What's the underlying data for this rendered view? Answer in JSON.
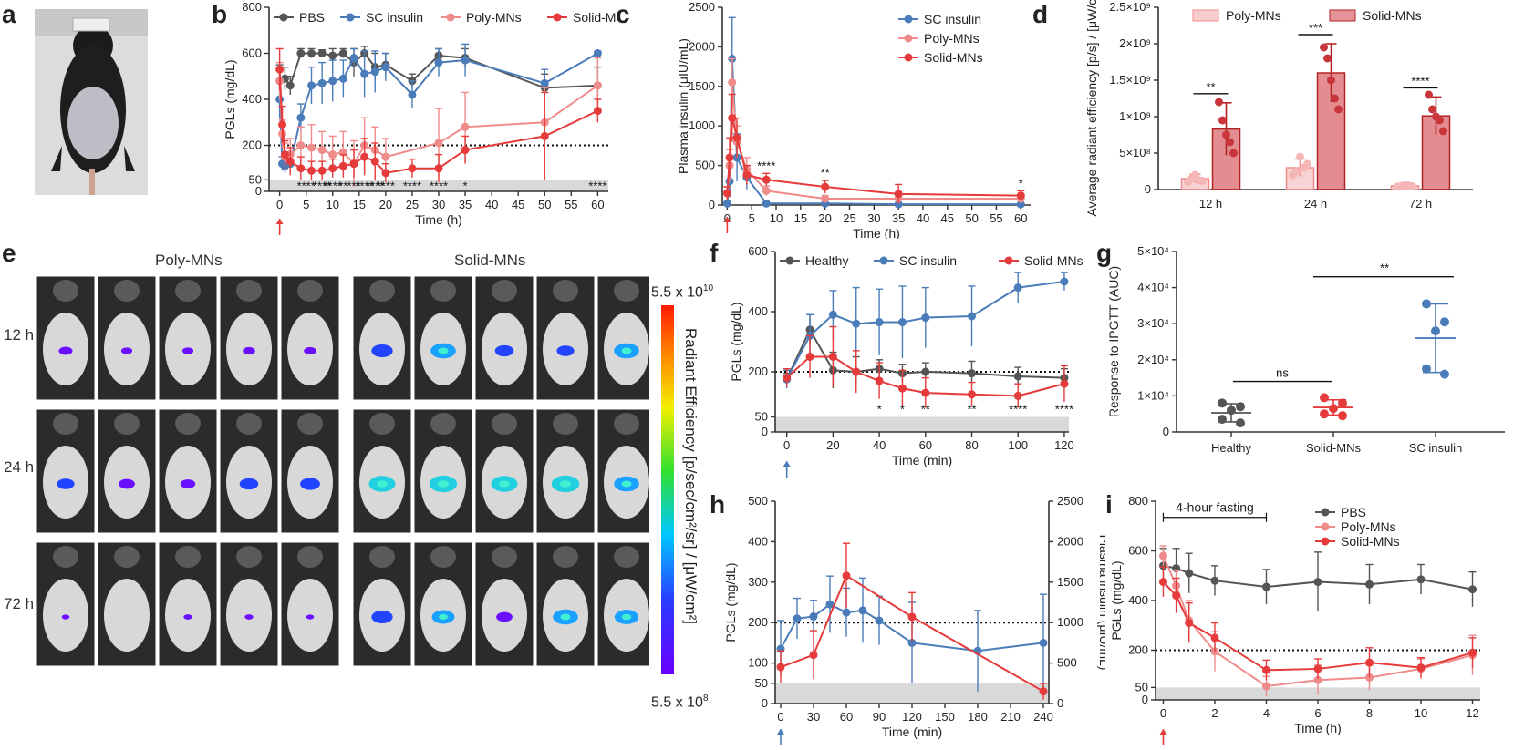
{
  "panel_letters": [
    "a",
    "b",
    "c",
    "d",
    "e",
    "f",
    "g",
    "h",
    "i"
  ],
  "colors": {
    "black": "#555555",
    "blue": "#4a7cba",
    "pink": "#f08b8b",
    "red": "#e63b3b",
    "grey_band": "#d9d9d9",
    "arrow_red": "#e63b3b",
    "arrow_blue": "#4a7cba"
  },
  "panel_e": {
    "group_labels": [
      "Poly-MNs",
      "Solid-MNs"
    ],
    "row_labels": [
      "12 h",
      "24 h",
      "72 h"
    ],
    "scale_max": "5.5 x 10",
    "scale_max_exp": "10",
    "scale_min": "5.5 x 10",
    "scale_min_exp": "8",
    "scale_title": "Radiant Efficiency [p/sec/cm²/sr] / [μW/cm²]",
    "signal_strength": [
      [
        0.25,
        0.15,
        0.15,
        0.2,
        0.2,
        0.55,
        0.7,
        0.45,
        0.4,
        0.7
      ],
      [
        0.4,
        0.35,
        0.3,
        0.45,
        0.5,
        0.75,
        0.8,
        0.75,
        0.8,
        0.7
      ],
      [
        0.02,
        0.0,
        0.05,
        0.05,
        0.02,
        0.55,
        0.6,
        0.35,
        0.7,
        0.65
      ]
    ]
  },
  "chart_data": [
    {
      "id": "b",
      "type": "line",
      "xlabel": "Time (h)",
      "ylabel": "PGLs (mg/dL)",
      "xlim": [
        -2,
        62
      ],
      "ylim": [
        0,
        800
      ],
      "xticks": [
        0,
        5,
        10,
        15,
        20,
        25,
        30,
        35,
        40,
        45,
        50,
        55,
        60
      ],
      "yticks": [
        0,
        50,
        200,
        400,
        600,
        800
      ],
      "reference_line": 200,
      "shaded_band": [
        0,
        50
      ],
      "series": [
        {
          "name": "PBS",
          "color": "#555555",
          "x": [
            0,
            1,
            2,
            4,
            6,
            8,
            10,
            12,
            14,
            16,
            18,
            20,
            25,
            30,
            35,
            50,
            60
          ],
          "y": [
            480,
            490,
            460,
            600,
            600,
            600,
            590,
            600,
            560,
            600,
            540,
            550,
            480,
            590,
            580,
            450,
            460
          ],
          "err": [
            70,
            50,
            40,
            20,
            20,
            15,
            30,
            20,
            60,
            30,
            60,
            50,
            30,
            30,
            40,
            60,
            80
          ]
        },
        {
          "name": "SC insulin",
          "color": "#4a7cba",
          "x": [
            0,
            0.5,
            1,
            2,
            4,
            6,
            8,
            10,
            12,
            14,
            16,
            18,
            20,
            25,
            30,
            35,
            50,
            60
          ],
          "y": [
            400,
            120,
            110,
            120,
            320,
            460,
            470,
            480,
            490,
            580,
            510,
            520,
            540,
            420,
            560,
            570,
            470,
            600
          ],
          "err": [
            80,
            30,
            30,
            40,
            60,
            80,
            90,
            90,
            80,
            40,
            100,
            90,
            60,
            60,
            60,
            70,
            60,
            10
          ]
        },
        {
          "name": "Poly-MNs",
          "color": "#f08b8b",
          "x": [
            0,
            0.5,
            1,
            2,
            4,
            6,
            8,
            10,
            12,
            14,
            16,
            18,
            20,
            30,
            35,
            50,
            60
          ],
          "y": [
            480,
            250,
            150,
            160,
            200,
            190,
            180,
            160,
            170,
            120,
            200,
            180,
            150,
            210,
            280,
            300,
            460
          ],
          "err": [
            80,
            60,
            60,
            70,
            80,
            100,
            80,
            80,
            90,
            100,
            120,
            100,
            80,
            150,
            150,
            150,
            120
          ]
        },
        {
          "name": "Solid-MNs",
          "color": "#e63b3b",
          "x": [
            0,
            0.5,
            1,
            2,
            4,
            6,
            8,
            10,
            12,
            14,
            16,
            18,
            20,
            25,
            30,
            35,
            50,
            60
          ],
          "y": [
            530,
            290,
            160,
            130,
            100,
            90,
            90,
            100,
            110,
            120,
            150,
            130,
            80,
            100,
            100,
            180,
            240,
            350
          ],
          "err": [
            90,
            80,
            60,
            60,
            50,
            40,
            40,
            40,
            50,
            60,
            80,
            80,
            40,
            40,
            60,
            60,
            190,
            50
          ]
        }
      ],
      "annotations": [
        "****",
        "****",
        "****",
        "**",
        "***",
        "****",
        "****",
        "****",
        "****",
        "****",
        "*",
        "****"
      ]
    },
    {
      "id": "c",
      "type": "line",
      "xlabel": "Time (h)",
      "ylabel": "Plasma insulin (μIU/mL)",
      "xlim": [
        -1,
        62
      ],
      "ylim": [
        0,
        2500
      ],
      "xticks": [
        0,
        5,
        10,
        15,
        20,
        25,
        30,
        35,
        40,
        45,
        50,
        55,
        60
      ],
      "yticks": [
        0,
        500,
        1000,
        1500,
        2000,
        2500
      ],
      "series": [
        {
          "name": "SC insulin",
          "color": "#4a7cba",
          "x": [
            0,
            0.5,
            1,
            2,
            4,
            8,
            20,
            35,
            60
          ],
          "y": [
            20,
            300,
            1850,
            600,
            350,
            20,
            20,
            10,
            10
          ],
          "err": [
            10,
            200,
            520,
            300,
            150,
            10,
            10,
            5,
            5
          ]
        },
        {
          "name": "Poly-MNs",
          "color": "#f08b8b",
          "x": [
            0,
            0.5,
            1,
            2,
            4,
            8,
            20,
            35,
            60
          ],
          "y": [
            150,
            500,
            1550,
            800,
            450,
            180,
            80,
            80,
            80
          ],
          "err": [
            80,
            200,
            300,
            200,
            150,
            60,
            40,
            40,
            30
          ]
        },
        {
          "name": "Solid-MNs",
          "color": "#e63b3b",
          "x": [
            0,
            0.5,
            1,
            2,
            4,
            8,
            20,
            35,
            60
          ],
          "y": [
            150,
            600,
            1100,
            850,
            380,
            320,
            230,
            140,
            120
          ],
          "err": [
            80,
            250,
            300,
            250,
            120,
            80,
            80,
            120,
            60
          ]
        }
      ],
      "annotations": [
        {
          "x": 8,
          "text": "****"
        },
        {
          "x": 20,
          "text": "**"
        },
        {
          "x": 60,
          "text": "*"
        }
      ]
    },
    {
      "id": "d",
      "type": "bar",
      "ylabel": "Average radiant efficiency [p/s] / [μW/cm²]",
      "ylim": [
        0,
        2500000000
      ],
      "yticks": [
        "0",
        "5×10⁸",
        "1×10⁹",
        "1.5×10⁹",
        "2×10⁹",
        "2.5×10⁹"
      ],
      "categories": [
        "12 h",
        "24 h",
        "72 h"
      ],
      "series": [
        {
          "name": "Poly-MNs",
          "color": "#f4b6b6",
          "values": [
            150000000,
            300000000,
            50000000
          ],
          "err": [
            60000000,
            120000000,
            20000000
          ],
          "points": [
            [
              100000000,
              150000000,
              200000000,
              130000000,
              120000000
            ],
            [
              200000000,
              250000000,
              450000000,
              300000000,
              350000000
            ],
            [
              40000000,
              50000000,
              60000000,
              55000000,
              45000000
            ]
          ]
        },
        {
          "name": "Solid-MNs",
          "color": "#d9676c",
          "values": [
            830000000,
            1600000000,
            1010000000
          ],
          "err": [
            360000000,
            400000000,
            260000000
          ],
          "points": [
            [
              1200000000,
              950000000,
              750000000,
              650000000,
              500000000
            ],
            [
              1950000000,
              1800000000,
              1500000000,
              1250000000,
              1100000000
            ],
            [
              1300000000,
              1100000000,
              1000000000,
              950000000,
              800000000
            ]
          ]
        }
      ],
      "annotations": [
        "**",
        "***",
        "****"
      ]
    },
    {
      "id": "f",
      "type": "line",
      "xlabel": "Time (min)",
      "ylabel": "PGLs (mg/dL)",
      "xlim": [
        -5,
        122
      ],
      "ylim": [
        0,
        600
      ],
      "xticks": [
        0,
        20,
        40,
        60,
        80,
        100,
        120
      ],
      "yticks": [
        0,
        50,
        200,
        400,
        600
      ],
      "reference_line": 200,
      "shaded_band": [
        0,
        50
      ],
      "series": [
        {
          "name": "Healthy",
          "color": "#555555",
          "x": [
            0,
            10,
            20,
            30,
            40,
            50,
            60,
            80,
            100,
            120
          ],
          "y": [
            175,
            340,
            205,
            200,
            210,
            195,
            200,
            195,
            185,
            180
          ],
          "err": [
            20,
            50,
            60,
            50,
            30,
            30,
            30,
            40,
            30,
            30
          ]
        },
        {
          "name": "SC insulin",
          "color": "#4a7cba",
          "x": [
            0,
            10,
            20,
            30,
            40,
            50,
            60,
            80,
            100,
            120
          ],
          "y": [
            175,
            320,
            390,
            360,
            365,
            365,
            380,
            385,
            480,
            500
          ],
          "err": [
            30,
            70,
            80,
            120,
            110,
            120,
            100,
            100,
            50,
            30
          ]
        },
        {
          "name": "Solid-MNs",
          "color": "#e63b3b",
          "x": [
            0,
            10,
            20,
            30,
            40,
            50,
            60,
            80,
            100,
            120
          ],
          "y": [
            180,
            250,
            250,
            200,
            170,
            145,
            130,
            125,
            120,
            160
          ],
          "err": [
            30,
            70,
            100,
            70,
            60,
            60,
            50,
            40,
            40,
            60
          ]
        }
      ],
      "annotations": [
        {
          "x": 40,
          "text": "*"
        },
        {
          "x": 50,
          "text": "*"
        },
        {
          "x": 60,
          "text": "**"
        },
        {
          "x": 80,
          "text": "**"
        },
        {
          "x": 100,
          "text": "****"
        },
        {
          "x": 120,
          "text": "****"
        }
      ]
    },
    {
      "id": "g",
      "type": "scatter",
      "ylabel": "Response to IPGTT (AUC)",
      "ylim": [
        0,
        50000
      ],
      "yticks": [
        "0",
        "1×10⁴",
        "2×10⁴",
        "3×10⁴",
        "4×10⁴",
        "5×10⁴"
      ],
      "categories": [
        "Healthy",
        "Solid-MNs",
        "SC insulin"
      ],
      "series": [
        {
          "name": "Healthy",
          "color": "#555555",
          "points": [
            8000,
            7000,
            6000,
            3500,
            2500
          ],
          "mean": 5300,
          "err": 2500
        },
        {
          "name": "Solid-MNs",
          "color": "#e63b3b",
          "points": [
            9500,
            8000,
            6500,
            5000,
            4500
          ],
          "mean": 6800,
          "err": 2100
        },
        {
          "name": "SC insulin",
          "color": "#4a7cba",
          "points": [
            35500,
            30500,
            28000,
            17500,
            16000
          ],
          "mean": 26000,
          "err": 9500
        }
      ],
      "annotations": [
        {
          "text": "ns",
          "between": [
            "Healthy",
            "Solid-MNs"
          ]
        },
        {
          "text": "**",
          "between": [
            "Solid-MNs",
            "SC insulin"
          ]
        }
      ]
    },
    {
      "id": "h",
      "type": "line",
      "xlabel": "Time (min)",
      "ylabel": "PGLs (mg/dL)",
      "ylabel_right": "Plasma insulin (μIU/mL)",
      "xlim": [
        -5,
        245
      ],
      "ylim": [
        0,
        500
      ],
      "ylim_right": [
        0,
        2500
      ],
      "xticks": [
        0,
        30,
        60,
        90,
        120,
        150,
        180,
        210,
        240
      ],
      "yticks": [
        0,
        50,
        100,
        200,
        300,
        400,
        500
      ],
      "yticks_right": [
        0,
        500,
        1000,
        1500,
        2000,
        2500
      ],
      "reference_line": 200,
      "shaded_band": [
        0,
        50
      ],
      "series": [
        {
          "name": "PGLs",
          "color": "#4a7cba",
          "axis": "left",
          "x": [
            0,
            15,
            30,
            45,
            60,
            75,
            90,
            120,
            180,
            240
          ],
          "y": [
            135,
            210,
            215,
            245,
            225,
            230,
            205,
            150,
            130,
            150
          ],
          "err": [
            70,
            50,
            40,
            70,
            60,
            80,
            60,
            100,
            100,
            120
          ]
        },
        {
          "name": "Plasma insulin",
          "color": "#e63b3b",
          "axis": "right",
          "x": [
            0,
            30,
            60,
            120,
            240
          ],
          "y": [
            450,
            600,
            1580,
            1070,
            150
          ],
          "err": [
            200,
            300,
            400,
            300,
            100
          ]
        }
      ]
    },
    {
      "id": "i",
      "type": "line",
      "xlabel": "Time (h)",
      "ylabel": "PGLs (mg/dL)",
      "xlim": [
        -0.3,
        12.3
      ],
      "ylim": [
        0,
        800
      ],
      "xticks": [
        0,
        2,
        4,
        6,
        8,
        10,
        12
      ],
      "yticks": [
        0,
        50,
        200,
        400,
        600,
        800
      ],
      "reference_line": 200,
      "shaded_band": [
        0,
        50
      ],
      "bracket_label": "4-hour fasting",
      "series": [
        {
          "name": "PBS",
          "color": "#555555",
          "x": [
            0,
            0.5,
            1,
            2,
            4,
            6,
            8,
            10,
            12
          ],
          "y": [
            540,
            530,
            510,
            480,
            455,
            475,
            465,
            485,
            445
          ],
          "err": [
            70,
            80,
            80,
            60,
            70,
            120,
            80,
            60,
            70
          ]
        },
        {
          "name": "Poly-MNs",
          "color": "#f08b8b",
          "x": [
            0,
            0.5,
            1,
            2,
            4,
            6,
            8,
            10,
            12
          ],
          "y": [
            580,
            460,
            320,
            195,
            55,
            80,
            90,
            125,
            180
          ],
          "err": [
            40,
            60,
            80,
            80,
            40,
            60,
            50,
            40,
            80
          ]
        },
        {
          "name": "Solid-MNs",
          "color": "#e63b3b",
          "x": [
            0,
            0.5,
            1,
            2,
            4,
            6,
            8,
            10,
            12
          ],
          "y": [
            475,
            420,
            310,
            250,
            120,
            125,
            150,
            130,
            190
          ],
          "err": [
            60,
            70,
            80,
            60,
            40,
            40,
            60,
            40,
            60
          ]
        }
      ]
    }
  ]
}
